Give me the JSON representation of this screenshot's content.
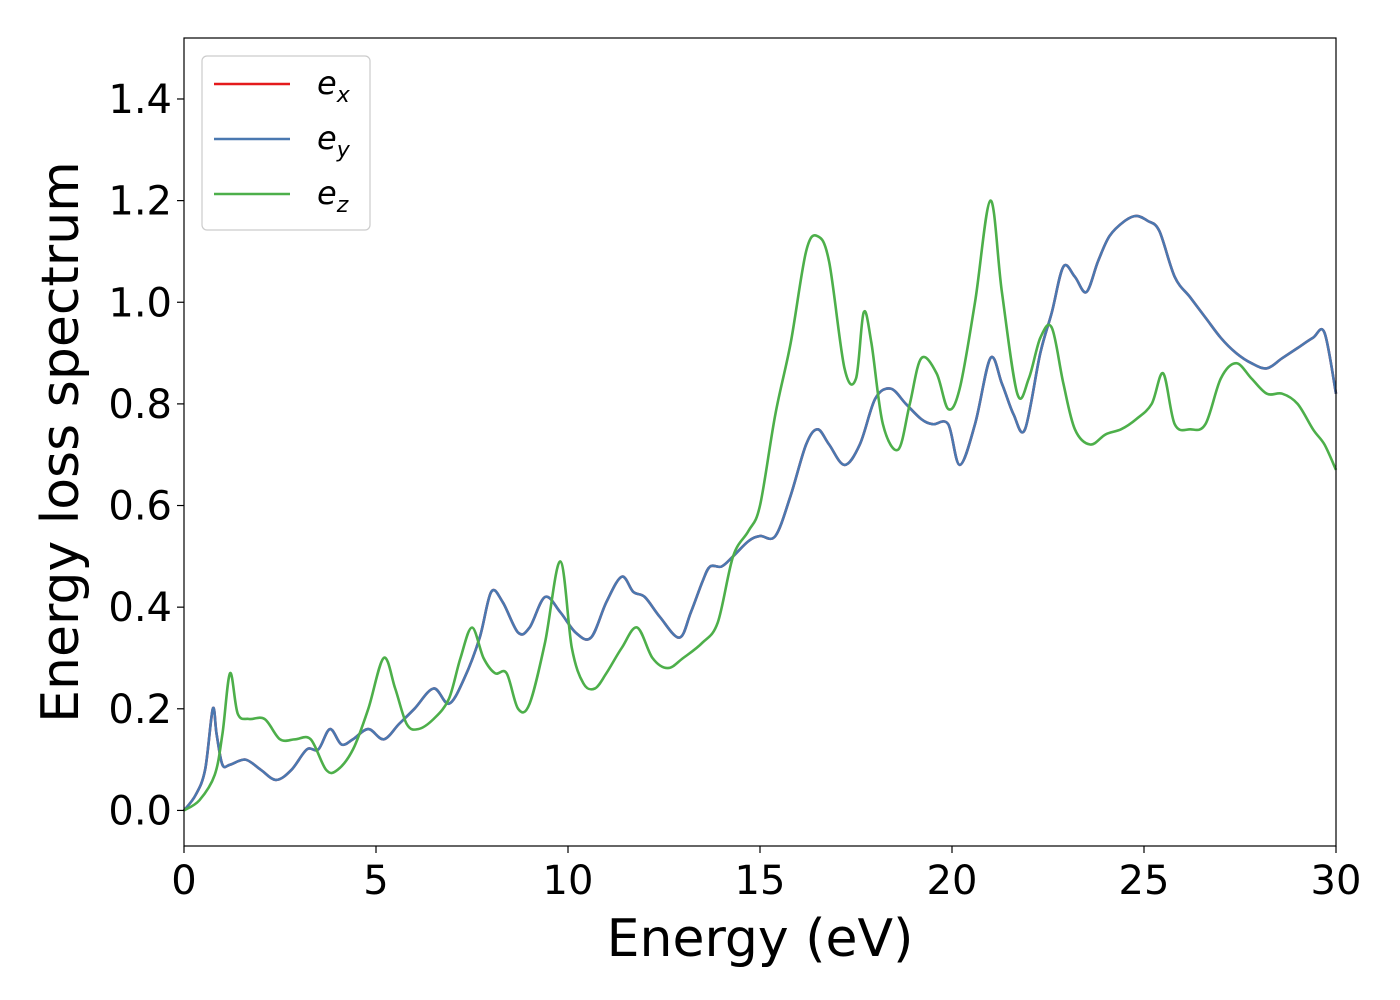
{
  "chart_data": {
    "type": "line",
    "title": "",
    "xlabel": "Energy (eV)",
    "ylabel": "Energy loss spectrum",
    "xlim": [
      0,
      30
    ],
    "ylim": [
      -0.07,
      1.52
    ],
    "xticks": [
      0,
      5,
      10,
      15,
      20,
      25,
      30
    ],
    "xtick_labels": [
      "0",
      "5",
      "10",
      "15",
      "20",
      "25",
      "30"
    ],
    "yticks": [
      0.0,
      0.2,
      0.4,
      0.6,
      0.8,
      1.0,
      1.2,
      1.4
    ],
    "ytick_labels": [
      "0.0",
      "0.2",
      "0.4",
      "0.6",
      "0.8",
      "1.0",
      "1.2",
      "1.4"
    ],
    "grid": false,
    "legend": "upper-left",
    "series": [
      {
        "name": "e_x",
        "legend_base": "e",
        "legend_sub": "x",
        "color": "#e41a1c",
        "x": [
          0,
          0.3,
          0.55,
          0.75,
          0.85,
          1.0,
          1.2,
          1.6,
          2.0,
          2.4,
          2.8,
          3.2,
          3.5,
          3.8,
          4.1,
          4.4,
          4.8,
          5.2,
          5.6,
          6.0,
          6.5,
          6.9,
          7.3,
          7.7,
          8.0,
          8.3,
          8.7,
          9.0,
          9.4,
          9.8,
          10.2,
          10.6,
          11.0,
          11.4,
          11.7,
          12.0,
          12.4,
          12.9,
          13.2,
          13.5,
          13.7,
          14.0,
          14.3,
          14.7,
          15.0,
          15.4,
          15.8,
          16.2,
          16.5,
          16.8,
          17.2,
          17.6,
          18.0,
          18.4,
          18.8,
          19.2,
          19.5,
          19.9,
          20.2,
          20.6,
          21.0,
          21.3,
          21.6,
          21.9,
          22.3,
          22.6,
          22.9,
          23.2,
          23.5,
          23.8,
          24.1,
          24.5,
          24.8,
          25.1,
          25.4,
          25.8,
          26.2,
          26.6,
          27.0,
          27.4,
          27.8,
          28.2,
          28.6,
          29.0,
          29.4,
          29.7,
          30.0
        ],
        "y": [
          0.0,
          0.03,
          0.08,
          0.2,
          0.15,
          0.09,
          0.09,
          0.1,
          0.08,
          0.06,
          0.08,
          0.12,
          0.12,
          0.16,
          0.13,
          0.14,
          0.16,
          0.14,
          0.17,
          0.2,
          0.24,
          0.21,
          0.26,
          0.34,
          0.43,
          0.41,
          0.35,
          0.36,
          0.42,
          0.39,
          0.35,
          0.34,
          0.41,
          0.46,
          0.43,
          0.42,
          0.38,
          0.34,
          0.39,
          0.45,
          0.48,
          0.48,
          0.5,
          0.53,
          0.54,
          0.54,
          0.62,
          0.72,
          0.75,
          0.72,
          0.68,
          0.72,
          0.81,
          0.83,
          0.8,
          0.77,
          0.76,
          0.76,
          0.68,
          0.76,
          0.89,
          0.84,
          0.78,
          0.75,
          0.9,
          0.98,
          1.07,
          1.05,
          1.02,
          1.08,
          1.13,
          1.16,
          1.17,
          1.16,
          1.14,
          1.05,
          1.01,
          0.97,
          0.93,
          0.9,
          0.88,
          0.87,
          0.89,
          0.91,
          0.93,
          0.94,
          0.82
        ]
      },
      {
        "name": "e_y",
        "legend_base": "e",
        "legend_sub": "y",
        "color": "#4a78b0",
        "x": [
          0,
          0.3,
          0.55,
          0.75,
          0.85,
          1.0,
          1.2,
          1.6,
          2.0,
          2.4,
          2.8,
          3.2,
          3.5,
          3.8,
          4.1,
          4.4,
          4.8,
          5.2,
          5.6,
          6.0,
          6.5,
          6.9,
          7.3,
          7.7,
          8.0,
          8.3,
          8.7,
          9.0,
          9.4,
          9.8,
          10.2,
          10.6,
          11.0,
          11.4,
          11.7,
          12.0,
          12.4,
          12.9,
          13.2,
          13.5,
          13.7,
          14.0,
          14.3,
          14.7,
          15.0,
          15.4,
          15.8,
          16.2,
          16.5,
          16.8,
          17.2,
          17.6,
          18.0,
          18.4,
          18.8,
          19.2,
          19.5,
          19.9,
          20.2,
          20.6,
          21.0,
          21.3,
          21.6,
          21.9,
          22.3,
          22.6,
          22.9,
          23.2,
          23.5,
          23.8,
          24.1,
          24.5,
          24.8,
          25.1,
          25.4,
          25.8,
          26.2,
          26.6,
          27.0,
          27.4,
          27.8,
          28.2,
          28.6,
          29.0,
          29.4,
          29.7,
          30.0
        ],
        "y": [
          0.0,
          0.03,
          0.08,
          0.2,
          0.15,
          0.09,
          0.09,
          0.1,
          0.08,
          0.06,
          0.08,
          0.12,
          0.12,
          0.16,
          0.13,
          0.14,
          0.16,
          0.14,
          0.17,
          0.2,
          0.24,
          0.21,
          0.26,
          0.34,
          0.43,
          0.41,
          0.35,
          0.36,
          0.42,
          0.39,
          0.35,
          0.34,
          0.41,
          0.46,
          0.43,
          0.42,
          0.38,
          0.34,
          0.39,
          0.45,
          0.48,
          0.48,
          0.5,
          0.53,
          0.54,
          0.54,
          0.62,
          0.72,
          0.75,
          0.72,
          0.68,
          0.72,
          0.81,
          0.83,
          0.8,
          0.77,
          0.76,
          0.76,
          0.68,
          0.76,
          0.89,
          0.84,
          0.78,
          0.75,
          0.9,
          0.98,
          1.07,
          1.05,
          1.02,
          1.08,
          1.13,
          1.16,
          1.17,
          1.16,
          1.14,
          1.05,
          1.01,
          0.97,
          0.93,
          0.9,
          0.88,
          0.87,
          0.89,
          0.91,
          0.93,
          0.94,
          0.82
        ]
      },
      {
        "name": "e_z",
        "legend_base": "e",
        "legend_sub": "z",
        "color": "#4daf4a",
        "x": [
          0,
          0.4,
          0.8,
          1.0,
          1.2,
          1.4,
          1.7,
          2.1,
          2.5,
          2.9,
          3.3,
          3.7,
          4.0,
          4.4,
          4.8,
          5.2,
          5.5,
          5.8,
          6.1,
          6.5,
          6.9,
          7.2,
          7.5,
          7.8,
          8.1,
          8.4,
          8.7,
          9.0,
          9.4,
          9.8,
          10.1,
          10.4,
          10.7,
          11.0,
          11.4,
          11.8,
          12.2,
          12.6,
          13.0,
          13.5,
          13.9,
          14.3,
          14.7,
          15.0,
          15.4,
          15.8,
          16.2,
          16.5,
          16.8,
          17.2,
          17.5,
          17.7,
          17.9,
          18.2,
          18.6,
          18.9,
          19.2,
          19.6,
          19.9,
          20.2,
          20.6,
          21.0,
          21.3,
          21.7,
          22.0,
          22.3,
          22.6,
          22.9,
          23.2,
          23.6,
          24.0,
          24.4,
          24.8,
          25.2,
          25.5,
          25.8,
          26.2,
          26.6,
          27.0,
          27.4,
          27.8,
          28.2,
          28.6,
          29.0,
          29.4,
          29.7,
          30.0
        ],
        "y": [
          0.0,
          0.02,
          0.07,
          0.15,
          0.27,
          0.19,
          0.18,
          0.18,
          0.14,
          0.14,
          0.14,
          0.08,
          0.08,
          0.12,
          0.2,
          0.3,
          0.24,
          0.17,
          0.16,
          0.18,
          0.22,
          0.3,
          0.36,
          0.3,
          0.27,
          0.27,
          0.2,
          0.21,
          0.33,
          0.49,
          0.32,
          0.25,
          0.24,
          0.27,
          0.32,
          0.36,
          0.3,
          0.28,
          0.3,
          0.33,
          0.37,
          0.5,
          0.55,
          0.6,
          0.78,
          0.92,
          1.1,
          1.13,
          1.08,
          0.87,
          0.85,
          0.98,
          0.92,
          0.76,
          0.71,
          0.8,
          0.89,
          0.86,
          0.79,
          0.83,
          1.0,
          1.2,
          1.02,
          0.82,
          0.85,
          0.93,
          0.95,
          0.84,
          0.75,
          0.72,
          0.74,
          0.75,
          0.77,
          0.8,
          0.86,
          0.76,
          0.75,
          0.76,
          0.85,
          0.88,
          0.85,
          0.82,
          0.82,
          0.8,
          0.75,
          0.72,
          0.67
        ]
      }
    ]
  }
}
